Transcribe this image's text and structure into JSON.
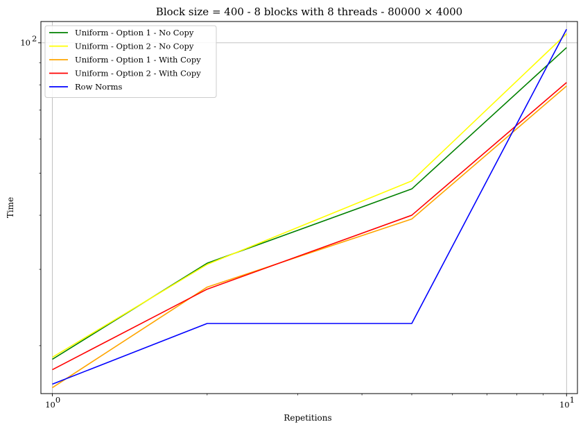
{
  "chart_data": {
    "type": "line",
    "title": "Block size = 400 - 8 blocks with 8 threads - 80000 × 4000",
    "xlabel": "Repetitions",
    "ylabel": "Time",
    "xscale": "log",
    "yscale": "log",
    "x": [
      1,
      2,
      5,
      10
    ],
    "xlim": [
      0.95,
      10.5
    ],
    "ylim": [
      15.5,
      112
    ],
    "xticks": [
      {
        "value": 1,
        "base": "10",
        "exp": "0"
      },
      {
        "value": 10,
        "base": "10",
        "exp": "1"
      }
    ],
    "yticks": [
      {
        "value": 100,
        "base": "10",
        "exp": "2"
      }
    ],
    "grid": true,
    "legend_position": "top-left",
    "series": [
      {
        "name": "Uniform - Option 1 - No Copy",
        "color": "#008000",
        "values": [
          18.6,
          31.0,
          46.0,
          97.5
        ]
      },
      {
        "name": "Uniform - Option 2 - No Copy",
        "color": "#ffff00",
        "values": [
          18.8,
          30.8,
          48.0,
          105.0
        ]
      },
      {
        "name": "Uniform - Option 1 - With Copy",
        "color": "#ffa500",
        "values": [
          16.0,
          27.3,
          39.2,
          79.5
        ]
      },
      {
        "name": "Uniform - Option 2 - With Copy",
        "color": "#ff0000",
        "values": [
          17.6,
          27.0,
          40.0,
          81.0
        ]
      },
      {
        "name": "Row Norms",
        "color": "#0000ff",
        "values": [
          16.3,
          22.5,
          22.5,
          107.5
        ]
      }
    ]
  }
}
